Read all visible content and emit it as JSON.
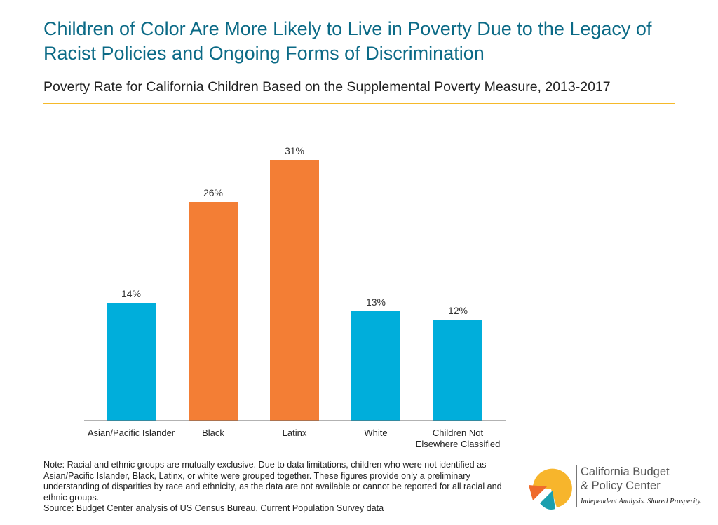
{
  "title": "Children of Color Are More Likely to Live in Poverty Due to the Legacy of Racist Policies and Ongoing Forms of Discrimination",
  "subtitle": "Poverty Rate for California Children Based on the Supplemental Poverty Measure, 2013-2017",
  "chart_data": {
    "type": "bar",
    "categories": [
      "Asian/Pacific Islander",
      "Black",
      "Latinx",
      "White",
      "Children Not Elsewhere Classified"
    ],
    "values": [
      14,
      26,
      31,
      13,
      12
    ],
    "labels": [
      "14%",
      "26%",
      "31%",
      "13%",
      "12%"
    ],
    "colors": [
      "#00aedb",
      "#f37e35",
      "#f37e35",
      "#00aedb",
      "#00aedb"
    ],
    "ylim": [
      0,
      32
    ],
    "grid": false,
    "xlabel": "",
    "ylabel": ""
  },
  "note": "Note: Racial and ethnic groups are mutually exclusive. Due to data limitations, children who were not identified as Asian/Pacific Islander, Black, Latinx, or white were grouped together. These figures provide only a preliminary understanding of disparities by race and ethnicity, as the data are not available or cannot be reported for all racial and ethnic groups.",
  "source": "Source: Budget Center analysis of US Census Bureau, Current Population Survey data",
  "logo": {
    "line1": "California Budget",
    "line2": "& Policy Center",
    "tagline": "Independent Analysis. Shared Prosperity."
  }
}
